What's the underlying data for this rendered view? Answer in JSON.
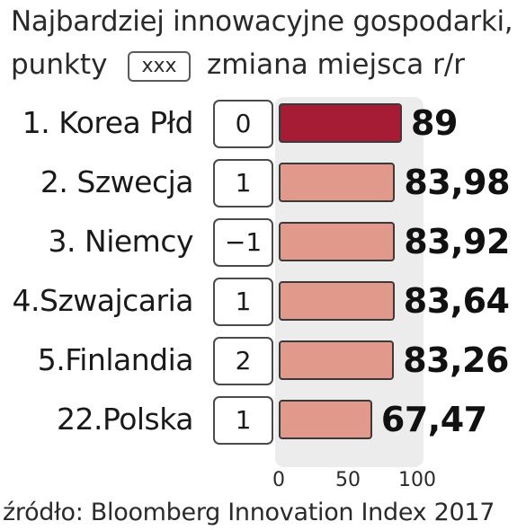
{
  "chart_data": {
    "type": "bar",
    "orientation": "horizontal",
    "title": "Najbardziej innowacyjne gospodarki,",
    "unit_label": "punkty",
    "legend": {
      "box_text": "xxx",
      "box_meaning": "zmiana miejsca r/r"
    },
    "categories": [
      "1. Korea Płd",
      "2. Szwecja",
      "3. Niemcy",
      "4.Szwajcaria",
      "5.Finlandia",
      "22.Polska"
    ],
    "values": [
      89,
      83.98,
      83.92,
      83.64,
      83.26,
      67.47
    ],
    "value_labels": [
      "89",
      "83,98",
      "83,92",
      "83,64",
      "83,26",
      "67,47"
    ],
    "rank_changes": [
      "0",
      "1",
      "−1",
      "1",
      "2",
      "1"
    ],
    "xlim": [
      0,
      100
    ],
    "xticks": [
      {
        "value": 0,
        "label": "0"
      },
      {
        "value": 50,
        "label": "50"
      },
      {
        "value": 100,
        "label": "100"
      }
    ],
    "highlight_index": 0,
    "colors": {
      "highlight": "#a61c34",
      "bar": "#e0998a",
      "plot_background": "#ececec"
    },
    "grid": false,
    "source": "źródło: Bloomberg Innovation Index 2017"
  }
}
